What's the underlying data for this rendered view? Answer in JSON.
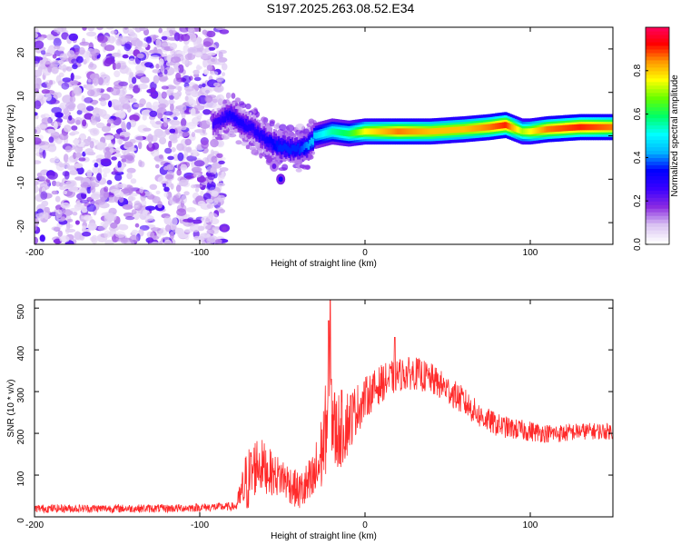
{
  "figure_title": "S197.2025.263.08.52.E34",
  "chart_data": [
    {
      "type": "heatmap",
      "title": "S197.2025.263.08.52.E34",
      "xlabel": "Height of straight line (km)",
      "ylabel": "Frequency (Hz)",
      "xlim": [
        -200,
        150
      ],
      "ylim": [
        -25,
        25
      ],
      "xticks": [
        -200,
        -100,
        0,
        100
      ],
      "yticks": [
        -20,
        -10,
        0,
        10,
        20
      ],
      "xtick_labels": [
        "-200",
        "-100",
        "0",
        "100"
      ],
      "ytick_labels": [
        "-20",
        "-10",
        "0",
        "10",
        "20"
      ],
      "colorbar": {
        "label": "Normalized spectral amplitude",
        "range": [
          0,
          1
        ],
        "ticks": [
          0.0,
          0.2,
          0.4,
          0.6,
          0.8
        ],
        "tick_labels": [
          "0.0",
          "0.2",
          "0.4",
          "0.6",
          "0.8"
        ],
        "colormap": [
          "#ffffff",
          "#d9c2f2",
          "#8a2be2",
          "#3a00ff",
          "#0000ff",
          "#00b4ff",
          "#00ffff",
          "#00ff66",
          "#66ff00",
          "#ffff00",
          "#ff9900",
          "#ff0000",
          "#ff0066"
        ]
      },
      "regions": [
        {
          "name": "noise",
          "x_range": [
            -200,
            -85
          ],
          "f_range": [
            -25,
            25
          ],
          "amplitude": 0.1
        },
        {
          "name": "onset",
          "x_range": [
            -85,
            -30
          ],
          "f_range": [
            -6,
            6
          ],
          "amplitude": 0.3
        }
      ],
      "ridge": {
        "x": [
          -90,
          -82,
          -75,
          -68,
          -60,
          -52,
          -45,
          -40,
          -35,
          -30,
          -20,
          -10,
          0,
          20,
          40,
          60,
          75,
          85,
          95,
          100,
          110,
          130,
          150
        ],
        "f": [
          3,
          5,
          3,
          1.5,
          -1,
          -2.5,
          -3,
          -3,
          -2.5,
          0,
          1,
          0.5,
          1,
          1,
          1,
          1.5,
          2,
          2.5,
          1,
          1,
          1.5,
          2,
          2
        ],
        "amp": [
          0.25,
          0.3,
          0.3,
          0.28,
          0.3,
          0.35,
          0.35,
          0.35,
          0.4,
          0.45,
          0.55,
          0.6,
          0.75,
          0.85,
          0.8,
          0.8,
          0.85,
          0.9,
          0.7,
          0.75,
          0.85,
          0.9,
          0.85
        ]
      },
      "secondary_blobs": [
        {
          "x": -51,
          "f": -10,
          "amp": 0.3
        },
        {
          "x": -55,
          "f": -7,
          "amp": 0.2
        }
      ]
    },
    {
      "type": "line",
      "xlabel": "Height of straight line (km)",
      "ylabel": "SNR (10 * v/v)",
      "xlim": [
        -200,
        150
      ],
      "ylim": [
        0,
        520
      ],
      "xticks": [
        -200,
        -100,
        0,
        100
      ],
      "yticks": [
        0,
        100,
        200,
        300,
        400,
        500
      ],
      "xtick_labels": [
        "-200",
        "-100",
        "0",
        "100"
      ],
      "ytick_labels": [
        "0",
        "100",
        "200",
        "300",
        "400",
        "500"
      ],
      "series": [
        {
          "name": "SNR",
          "color": "#ff2a2a",
          "envelope_x": [
            -200,
            -120,
            -78,
            -72,
            -65,
            -60,
            -55,
            -50,
            -40,
            -32,
            -28,
            -25,
            -22,
            -21,
            -18,
            -12,
            -8,
            -5,
            -2,
            0,
            10,
            20,
            30,
            40,
            50,
            60,
            70,
            80,
            90,
            100,
            110,
            120,
            130,
            140,
            150
          ],
          "envelope_y": [
            20,
            20,
            25,
            80,
            130,
            115,
            100,
            95,
            60,
            80,
            120,
            180,
            260,
            290,
            200,
            220,
            240,
            260,
            270,
            285,
            320,
            340,
            345,
            330,
            305,
            275,
            240,
            220,
            210,
            205,
            200,
            200,
            205,
            205,
            205
          ],
          "noise_amplitude": [
            10,
            10,
            10,
            80,
            70,
            60,
            50,
            50,
            45,
            70,
            90,
            100,
            130,
            150,
            100,
            90,
            70,
            60,
            55,
            50,
            45,
            40,
            40,
            38,
            35,
            35,
            30,
            28,
            25,
            25,
            22,
            22,
            20,
            20,
            20
          ],
          "spikes": [
            {
              "x": -22,
              "y": 470
            },
            {
              "x": -21,
              "y": 520
            },
            {
              "x": 18,
              "y": 430
            }
          ]
        }
      ]
    }
  ]
}
